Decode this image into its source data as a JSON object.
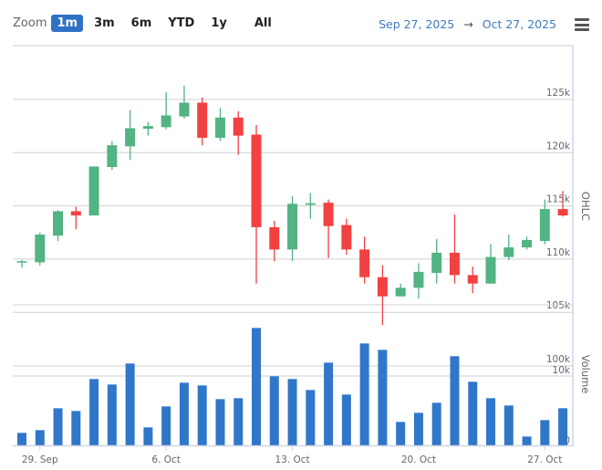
{
  "toolbar": {
    "zoom_label": "Zoom",
    "buttons": [
      "1m",
      "3m",
      "6m",
      "YTD",
      "1y",
      "All"
    ],
    "active": "1m",
    "range_from": "Sep 27, 2025",
    "range_arrow": "→",
    "range_to": "Oct 27, 2025"
  },
  "colors": {
    "up": "#52b383",
    "down": "#f24141",
    "volume": "#3077c9",
    "grid": "#d0d0d0",
    "accent": "#2f72c4"
  },
  "chart_data": [
    {
      "type": "candlestick",
      "ylabel": "OHLC",
      "yticks": [
        {
          "v": 125000,
          "label": "125k"
        },
        {
          "v": 120000,
          "label": "120k"
        },
        {
          "v": 115000,
          "label": "115k"
        },
        {
          "v": 110000,
          "label": "110k"
        },
        {
          "v": 105000,
          "label": "105k"
        }
      ],
      "ylim": [
        105000,
        127000
      ],
      "x": [
        "Sep 28",
        "Sep 29",
        "Sep 30",
        "Oct 1",
        "Oct 2",
        "Oct 3",
        "Oct 4",
        "Oct 5",
        "Oct 6",
        "Oct 7",
        "Oct 8",
        "Oct 9",
        "Oct 10",
        "Oct 11",
        "Oct 12",
        "Oct 13",
        "Oct 14",
        "Oct 15",
        "Oct 16",
        "Oct 17",
        "Oct 18",
        "Oct 19",
        "Oct 20",
        "Oct 21",
        "Oct 22",
        "Oct 23",
        "Oct 24",
        "Oct 25",
        "Oct 26",
        "Oct 27",
        "Oct 28"
      ],
      "ohlc": [
        [
          109800,
          109900,
          109200,
          109800
        ],
        [
          109700,
          112500,
          109400,
          112300
        ],
        [
          112200,
          114600,
          111700,
          114500
        ],
        [
          114500,
          114900,
          112800,
          114100
        ],
        [
          114100,
          118700,
          114100,
          118700
        ],
        [
          118650,
          121100,
          118400,
          120700
        ],
        [
          120600,
          124000,
          119300,
          122300
        ],
        [
          122250,
          122900,
          121600,
          122500
        ],
        [
          122400,
          125700,
          122200,
          123500
        ],
        [
          123400,
          126300,
          123200,
          124700
        ],
        [
          124700,
          125200,
          120700,
          121400
        ],
        [
          121400,
          124200,
          121100,
          123300
        ],
        [
          123300,
          123900,
          119800,
          121600
        ],
        [
          121700,
          122600,
          107700,
          113000
        ],
        [
          113000,
          113600,
          109800,
          110900
        ],
        [
          110900,
          115900,
          109800,
          115200
        ],
        [
          115100,
          116200,
          113800,
          115250
        ],
        [
          115300,
          115600,
          110100,
          113100
        ],
        [
          113200,
          113800,
          110400,
          110900
        ],
        [
          110900,
          112100,
          107700,
          108300
        ],
        [
          108300,
          109400,
          103800,
          106500
        ],
        [
          106500,
          107700,
          106500,
          107300
        ],
        [
          107300,
          109600,
          106300,
          108800
        ],
        [
          108700,
          111900,
          107700,
          110600
        ],
        [
          110600,
          114200,
          107700,
          108500
        ],
        [
          108500,
          109300,
          106800,
          107700
        ],
        [
          107700,
          111400,
          107700,
          110200
        ],
        [
          110200,
          112300,
          109900,
          111100
        ],
        [
          111100,
          112100,
          110900,
          111800
        ],
        [
          111700,
          115600,
          111400,
          114700
        ],
        [
          114700,
          116400,
          114000,
          114100
        ]
      ]
    },
    {
      "type": "bar",
      "ylabel": "Volume",
      "yticks": [
        {
          "label": "100k"
        },
        {
          "label": "10k"
        },
        {
          "label": "0"
        }
      ],
      "values_relative": [
        41,
        50,
        122,
        113,
        218,
        200,
        269,
        59,
        128,
        206,
        197,
        152,
        155,
        386,
        227,
        218,
        182,
        272,
        167,
        335,
        314,
        77,
        107,
        140,
        293,
        209,
        155,
        131,
        29,
        83,
        122
      ]
    }
  ],
  "xaxis": {
    "ticks": [
      {
        "index": 1,
        "label": "29. Sep"
      },
      {
        "index": 8,
        "label": "6. Oct"
      },
      {
        "index": 15,
        "label": "13. Oct"
      },
      {
        "index": 22,
        "label": "20. Oct"
      },
      {
        "index": 29,
        "label": "27. Oct"
      }
    ]
  }
}
